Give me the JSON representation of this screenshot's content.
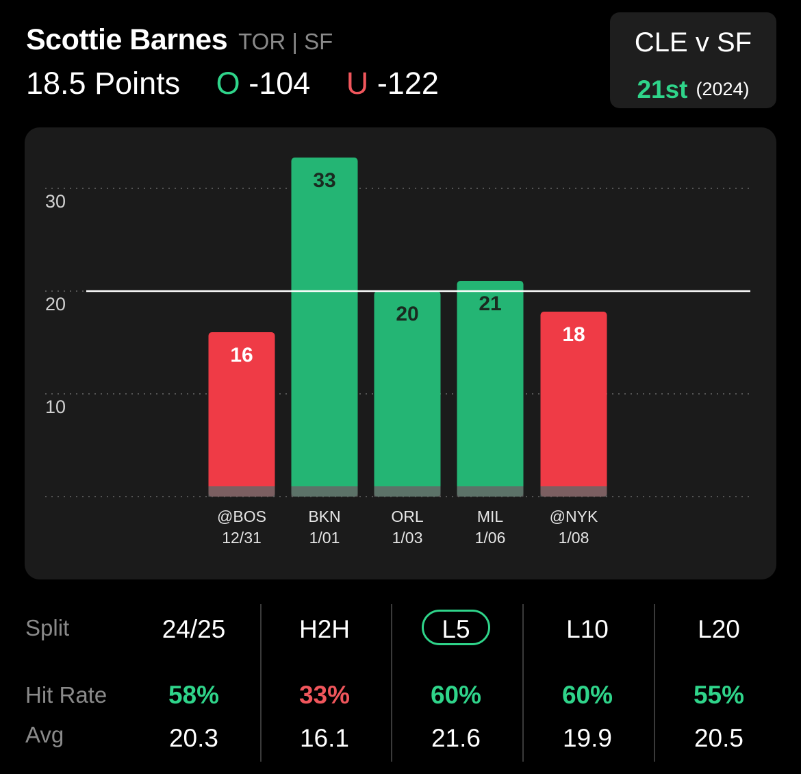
{
  "header": {
    "player_name": "Scottie Barnes",
    "team_position": "TOR | SF",
    "line": "18.5 Points",
    "over_label": "O",
    "over_odds": "-104",
    "under_label": "U",
    "under_odds": "-122"
  },
  "matchup": {
    "title": "CLE v SF",
    "rank": "21st",
    "season": "(2024)"
  },
  "chart_data": {
    "type": "bar",
    "categories": [
      "@BOS",
      "BKN",
      "ORL",
      "MIL",
      "@NYK"
    ],
    "dates": [
      "12/31",
      "1/01",
      "1/03",
      "1/06",
      "1/08"
    ],
    "values": [
      16,
      33,
      20,
      21,
      18
    ],
    "data_labels": [
      "16",
      "33",
      "20",
      "21",
      "18"
    ],
    "result": [
      "under",
      "over",
      "over",
      "over",
      "under"
    ],
    "reference_line": 20,
    "yticks": [
      10,
      20,
      30
    ],
    "ylim": [
      0,
      33
    ],
    "grid": true,
    "colors": {
      "over": "#24b574",
      "under": "#ef3b46",
      "base": "#666666"
    }
  },
  "splits": {
    "row_labels": {
      "split": "Split",
      "hit_rate": "Hit Rate",
      "avg": "Avg"
    },
    "selected_index": 2,
    "columns": [
      {
        "label": "24/25",
        "hit_rate": "58%",
        "hit_status": "good",
        "avg": "20.3"
      },
      {
        "label": "H2H",
        "hit_rate": "33%",
        "hit_status": "bad",
        "avg": "16.1"
      },
      {
        "label": "L5",
        "hit_rate": "60%",
        "hit_status": "good",
        "avg": "21.6"
      },
      {
        "label": "L10",
        "hit_rate": "60%",
        "hit_status": "good",
        "avg": "19.9"
      },
      {
        "label": "L20",
        "hit_rate": "55%",
        "hit_status": "good",
        "avg": "20.5"
      }
    ],
    "colors": {
      "good": "#2fd48a",
      "bad": "#f0565c"
    }
  }
}
